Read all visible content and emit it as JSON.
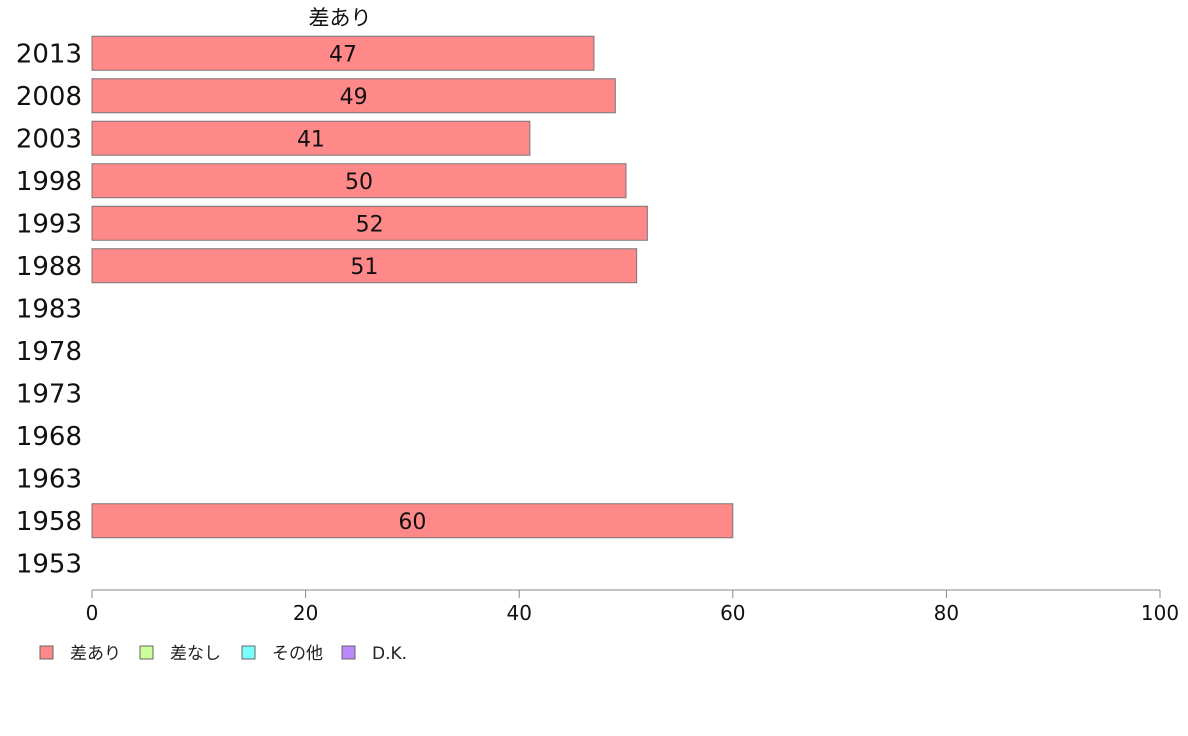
{
  "chart_data": {
    "type": "bar",
    "orientation": "horizontal",
    "categories": [
      "2013",
      "2008",
      "2003",
      "1998",
      "1993",
      "1988",
      "1983",
      "1978",
      "1973",
      "1968",
      "1963",
      "1958",
      "1953"
    ],
    "series": [
      {
        "name": "差あり",
        "color": "#ff8888",
        "values": [
          47,
          49,
          41,
          50,
          52,
          51,
          null,
          null,
          null,
          null,
          null,
          60,
          null
        ]
      },
      {
        "name": "差なし",
        "color": "#ccff99",
        "values": [
          null,
          null,
          null,
          null,
          null,
          null,
          null,
          null,
          null,
          null,
          null,
          null,
          null
        ]
      },
      {
        "name": "その他",
        "color": "#77ffff",
        "values": [
          null,
          null,
          null,
          null,
          null,
          null,
          null,
          null,
          null,
          null,
          null,
          null,
          null
        ]
      },
      {
        "name": "D.K.",
        "color": "#bb88ff",
        "values": [
          null,
          null,
          null,
          null,
          null,
          null,
          null,
          null,
          null,
          null,
          null,
          null,
          null
        ]
      }
    ],
    "column_header": "差あり",
    "xlim": [
      0,
      100
    ],
    "xticks": [
      "0",
      "20",
      "40",
      "60",
      "80",
      "100"
    ],
    "legend_position": "bottom-left",
    "grid": false
  }
}
